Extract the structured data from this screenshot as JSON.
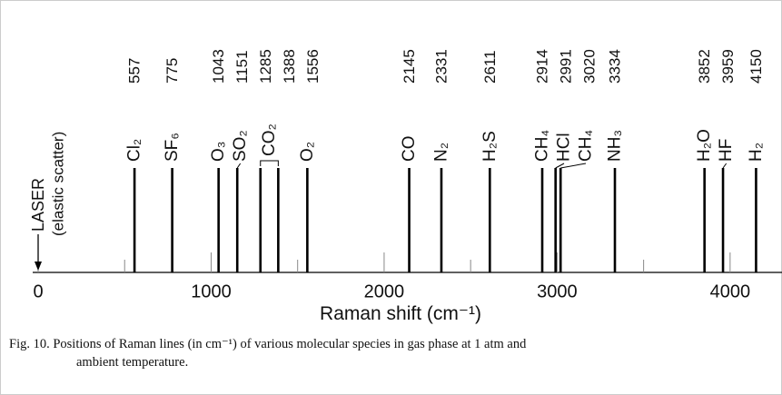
{
  "chart_data": {
    "type": "spike",
    "values": [
      557,
      775,
      1043,
      1151,
      1285,
      1388,
      1556,
      2145,
      2331,
      2611,
      2914,
      2991,
      3020,
      3334,
      3852,
      3959,
      4150
    ],
    "labels": [
      "Cl₂",
      "SF₆",
      "O₃",
      "SO₂",
      "CO₂",
      null,
      "O₂",
      "CO",
      "N₂",
      "H₂S",
      "CH₄",
      "HCl",
      "CH₄",
      "NH₃",
      "H₂O",
      "HF",
      "H₂"
    ],
    "laser": {
      "label": "LASER",
      "sublabel": "(elastic scatter)",
      "value": 0
    },
    "xlabel": "Raman shift (cm⁻¹)",
    "xlim": [
      0,
      4300
    ],
    "xticks": [
      0,
      1000,
      2000,
      3000,
      4000
    ],
    "xminor_ticks": [
      500,
      1500,
      2500,
      3500
    ],
    "color": "#000000",
    "caption": [
      "Fig. 10.  Positions of Raman lines (in cm⁻¹) of various molecular species in gas phase at 1 atm and",
      "ambient temperature."
    ]
  }
}
